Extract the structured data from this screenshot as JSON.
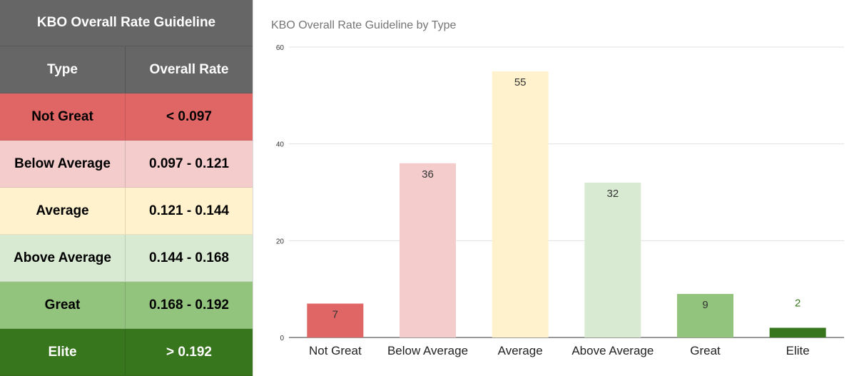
{
  "table": {
    "title": "KBO Overall Rate Guideline",
    "headers": [
      "Type",
      "Overall Rate"
    ],
    "header_bg": "#666666",
    "rows": [
      {
        "type": "Not Great",
        "rate": "< 0.097",
        "bg": "#e06666",
        "fg": "#000000"
      },
      {
        "type": "Below Average",
        "rate": "0.097 - 0.121",
        "bg": "#f4cccc",
        "fg": "#000000"
      },
      {
        "type": "Average",
        "rate": "0.121 - 0.144",
        "bg": "#fff2cc",
        "fg": "#000000"
      },
      {
        "type": "Above Average",
        "rate": "0.144 - 0.168",
        "bg": "#d9ead3",
        "fg": "#000000"
      },
      {
        "type": "Great",
        "rate": "0.168 - 0.192",
        "bg": "#93c47d",
        "fg": "#000000"
      },
      {
        "type": "Elite",
        "rate": "> 0.192",
        "bg": "#38761d",
        "fg": "#ffffff"
      }
    ]
  },
  "chart_data": {
    "type": "bar",
    "title": "KBO Overall Rate Guideline by Type",
    "xlabel": "",
    "ylabel": "",
    "categories": [
      "Not Great",
      "Below Average",
      "Average",
      "Above Average",
      "Great",
      "Elite"
    ],
    "values": [
      7,
      36,
      55,
      32,
      9,
      2
    ],
    "bar_colors": [
      "#e06666",
      "#f4cccc",
      "#fff2cc",
      "#d9ead3",
      "#93c47d",
      "#38761d"
    ],
    "label_colors": [
      "#333333",
      "#333333",
      "#333333",
      "#333333",
      "#333333",
      "#38761d"
    ],
    "ylim": [
      0,
      60
    ],
    "yticks": [
      0,
      20,
      40,
      60
    ],
    "grid": true,
    "trendline": {
      "type": "polynomial",
      "color": "#b6d0f0"
    }
  }
}
